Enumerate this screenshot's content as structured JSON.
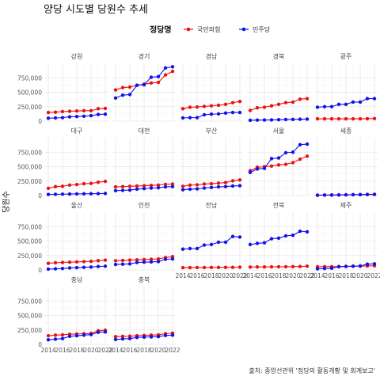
{
  "chart_data": {
    "type": "line",
    "title": "양당 시도별 당원수 추세",
    "xlabel": "",
    "ylabel": "당원수",
    "caption": "출처: 중앙선관위 '정당의 활동개황 및 회계보고'",
    "legend": {
      "title": "정당명",
      "position": "top",
      "items": [
        {
          "name": "국민의힘",
          "color": "#ee1111"
        },
        {
          "name": "민주당",
          "color": "#1111ee"
        }
      ]
    },
    "x": [
      2014,
      2015,
      2016,
      2017,
      2018,
      2019,
      2020,
      2021,
      2022
    ],
    "xticks": [
      2014,
      2016,
      2018,
      2020,
      2022
    ],
    "xtick_labels": [
      "2014",
      "2016",
      "2018",
      "2020",
      "2022"
    ],
    "ylim": [
      0,
      1000000
    ],
    "yticks": [
      0,
      250000,
      500000,
      750000
    ],
    "ytick_labels": [
      "0",
      "250,000",
      "500,000",
      "750,000"
    ],
    "grid": true,
    "panels": [
      {
        "name": "강원",
        "series": [
          {
            "name": "국민의힘",
            "values": [
              150000,
              155000,
              165000,
              170000,
              175000,
              180000,
              180000,
              215000,
              220000
            ]
          },
          {
            "name": "민주당",
            "values": [
              50000,
              55000,
              60000,
              75000,
              80000,
              85000,
              95000,
              115000,
              120000
            ]
          }
        ]
      },
      {
        "name": "경기",
        "series": [
          {
            "name": "국민의힘",
            "values": [
              540000,
              580000,
              590000,
              620000,
              640000,
              660000,
              670000,
              800000,
              860000
            ]
          },
          {
            "name": "민주당",
            "values": [
              400000,
              450000,
              460000,
              620000,
              630000,
              760000,
              770000,
              920000,
              940000
            ]
          }
        ]
      },
      {
        "name": "경남",
        "series": [
          {
            "name": "국민의힘",
            "values": [
              215000,
              240000,
              245000,
              255000,
              265000,
              275000,
              290000,
              320000,
              340000
            ]
          },
          {
            "name": "민주당",
            "values": [
              55000,
              60000,
              60000,
              110000,
              120000,
              125000,
              140000,
              150000,
              150000
            ]
          }
        ]
      },
      {
        "name": "경북",
        "series": [
          {
            "name": "국민의힘",
            "values": [
              185000,
              230000,
              240000,
              265000,
              290000,
              320000,
              330000,
              380000,
              390000
            ]
          },
          {
            "name": "민주당",
            "values": [
              15000,
              18000,
              20000,
              22000,
              25000,
              28000,
              30000,
              33000,
              35000
            ]
          }
        ]
      },
      {
        "name": "광주",
        "series": [
          {
            "name": "국민의힘",
            "values": [
              40000,
              40000,
              40000,
              40000,
              40000,
              40000,
              40000,
              42000,
              45000
            ]
          },
          {
            "name": "민주당",
            "values": [
              240000,
              250000,
              250000,
              290000,
              290000,
              330000,
              330000,
              390000,
              390000
            ]
          }
        ]
      },
      {
        "name": "대구",
        "series": [
          {
            "name": "국민의힘",
            "values": [
              125000,
              155000,
              160000,
              180000,
              190000,
              205000,
              210000,
              230000,
              245000
            ]
          },
          {
            "name": "민주당",
            "values": [
              20000,
              22000,
              24000,
              26000,
              28000,
              30000,
              32000,
              34000,
              36000
            ]
          }
        ]
      },
      {
        "name": "대전",
        "series": [
          {
            "name": "국민의힘",
            "values": [
              150000,
              155000,
              160000,
              165000,
              170000,
              175000,
              180000,
              195000,
              200000
            ]
          },
          {
            "name": "민주당",
            "values": [
              85000,
              90000,
              95000,
              110000,
              120000,
              130000,
              135000,
              150000,
              155000
            ]
          }
        ]
      },
      {
        "name": "부산",
        "series": [
          {
            "name": "국민의힘",
            "values": [
              160000,
              180000,
              185000,
              200000,
              205000,
              215000,
              225000,
              255000,
              270000
            ]
          },
          {
            "name": "민주당",
            "values": [
              100000,
              110000,
              115000,
              130000,
              140000,
              150000,
              155000,
              165000,
              170000
            ]
          }
        ]
      },
      {
        "name": "서울",
        "series": [
          {
            "name": "국민의힘",
            "values": [
              430000,
              490000,
              500000,
              510000,
              530000,
              540000,
              570000,
              630000,
              680000
            ]
          },
          {
            "name": "민주당",
            "values": [
              400000,
              460000,
              470000,
              640000,
              650000,
              740000,
              750000,
              880000,
              890000
            ]
          }
        ]
      },
      {
        "name": "세종",
        "series": [
          {
            "name": "국민의힘",
            "values": [
              8000,
              10000,
              11000,
              12000,
              13000,
              14000,
              15000,
              17000,
              18000
            ]
          },
          {
            "name": "민주당",
            "values": [
              5000,
              7000,
              8000,
              10000,
              12000,
              14000,
              16000,
              20000,
              22000
            ]
          }
        ]
      },
      {
        "name": "울산",
        "series": [
          {
            "name": "국민의힘",
            "values": [
              115000,
              125000,
              130000,
              135000,
              140000,
              145000,
              150000,
              160000,
              170000
            ]
          },
          {
            "name": "민주당",
            "values": [
              15000,
              20000,
              25000,
              35000,
              40000,
              45000,
              50000,
              60000,
              65000
            ]
          }
        ]
      },
      {
        "name": "인천",
        "series": [
          {
            "name": "국민의힘",
            "values": [
              160000,
              165000,
              170000,
              175000,
              180000,
              185000,
              190000,
              215000,
              230000
            ]
          },
          {
            "name": "민주당",
            "values": [
              95000,
              100000,
              105000,
              130000,
              135000,
              140000,
              145000,
              185000,
              190000
            ]
          }
        ]
      },
      {
        "name": "전남",
        "series": [
          {
            "name": "국민의힘",
            "values": [
              40000,
              40000,
              42000,
              42000,
              44000,
              44000,
              45000,
              46000,
              48000
            ]
          },
          {
            "name": "민주당",
            "values": [
              360000,
              370000,
              370000,
              430000,
              440000,
              480000,
              480000,
              580000,
              570000
            ]
          }
        ]
      },
      {
        "name": "전북",
        "series": [
          {
            "name": "국민의힘",
            "values": [
              50000,
              52000,
              52000,
              54000,
              55000,
              56000,
              57000,
              60000,
              65000
            ]
          },
          {
            "name": "민주당",
            "values": [
              440000,
              460000,
              470000,
              540000,
              550000,
              590000,
              600000,
              670000,
              660000
            ]
          }
        ]
      },
      {
        "name": "제주",
        "series": [
          {
            "name": "국민의힘",
            "values": [
              55000,
              58000,
              58000,
              60000,
              62000,
              64000,
              65000,
              70000,
              72000
            ]
          },
          {
            "name": "민주당",
            "values": [
              20000,
              25000,
              30000,
              55000,
              60000,
              65000,
              70000,
              100000,
              105000
            ]
          }
        ]
      },
      {
        "name": "충남",
        "series": [
          {
            "name": "국민의힘",
            "values": [
              150000,
              160000,
              165000,
              175000,
              180000,
              185000,
              190000,
              235000,
              245000
            ]
          },
          {
            "name": "민주당",
            "values": [
              80000,
              90000,
              100000,
              140000,
              150000,
              160000,
              170000,
              210000,
              215000
            ]
          }
        ]
      },
      {
        "name": "충북",
        "series": [
          {
            "name": "국민의힘",
            "values": [
              135000,
              140000,
              142000,
              150000,
              155000,
              160000,
              165000,
              185000,
              195000
            ]
          },
          {
            "name": "민주당",
            "values": [
              85000,
              95000,
              100000,
              120000,
              125000,
              130000,
              135000,
              155000,
              160000
            ]
          }
        ]
      }
    ]
  }
}
